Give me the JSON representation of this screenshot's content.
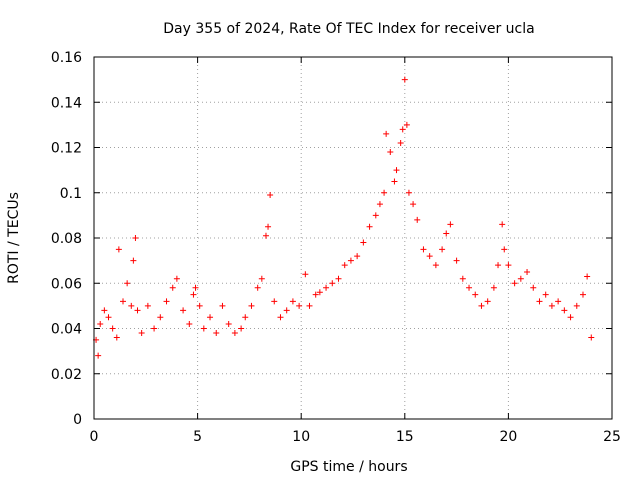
{
  "chart_data": {
    "type": "scatter",
    "title": "Day 355 of 2024, Rate Of TEC Index for receiver ucla",
    "xlabel": "GPS time / hours",
    "ylabel": "ROTI / TECUs",
    "xlim": [
      0,
      25
    ],
    "ylim": [
      0,
      0.16
    ],
    "x_ticks": [
      0,
      5,
      10,
      15,
      20,
      25
    ],
    "x_tick_labels": [
      "0",
      "5",
      "10",
      "15",
      "20",
      "25"
    ],
    "y_ticks": [
      0,
      0.02,
      0.04,
      0.06,
      0.08,
      0.1,
      0.12,
      0.14,
      0.16
    ],
    "y_tick_labels": [
      "0",
      "0.02",
      "0.04",
      "0.06",
      "0.08",
      "0.1",
      "0.12",
      "0.14",
      "0.16"
    ],
    "grid": true,
    "marker": "+",
    "color": "#ff0000",
    "series": [
      {
        "name": "ROTI",
        "x": [
          0.1,
          0.2,
          0.3,
          0.5,
          0.7,
          0.9,
          1.1,
          1.2,
          1.4,
          1.6,
          1.8,
          1.9,
          2.0,
          2.1,
          2.3,
          2.6,
          2.9,
          3.2,
          3.5,
          3.8,
          4.0,
          4.3,
          4.6,
          4.8,
          4.9,
          5.1,
          5.3,
          5.6,
          5.9,
          6.2,
          6.5,
          6.8,
          7.1,
          7.3,
          7.6,
          7.9,
          8.1,
          8.3,
          8.4,
          8.5,
          8.7,
          9.0,
          9.3,
          9.6,
          9.9,
          10.2,
          10.4,
          10.7,
          10.9,
          11.2,
          11.5,
          11.8,
          12.1,
          12.4,
          12.7,
          13.0,
          13.3,
          13.6,
          13.8,
          14.0,
          14.1,
          14.3,
          14.5,
          14.6,
          14.8,
          14.9,
          15.0,
          15.1,
          15.2,
          15.4,
          15.6,
          15.9,
          16.2,
          16.5,
          16.8,
          17.0,
          17.2,
          17.5,
          17.8,
          18.1,
          18.4,
          18.7,
          19.0,
          19.3,
          19.5,
          19.7,
          19.8,
          20.0,
          20.3,
          20.6,
          20.9,
          21.2,
          21.5,
          21.8,
          22.1,
          22.4,
          22.7,
          23.0,
          23.3,
          23.6,
          23.8,
          24.0
        ],
        "y": [
          0.035,
          0.028,
          0.042,
          0.048,
          0.045,
          0.04,
          0.036,
          0.075,
          0.052,
          0.06,
          0.05,
          0.07,
          0.08,
          0.048,
          0.038,
          0.05,
          0.04,
          0.045,
          0.052,
          0.058,
          0.062,
          0.048,
          0.042,
          0.055,
          0.058,
          0.05,
          0.04,
          0.045,
          0.038,
          0.05,
          0.042,
          0.038,
          0.04,
          0.045,
          0.05,
          0.058,
          0.062,
          0.081,
          0.085,
          0.099,
          0.052,
          0.045,
          0.048,
          0.052,
          0.05,
          0.064,
          0.05,
          0.055,
          0.056,
          0.058,
          0.06,
          0.062,
          0.068,
          0.07,
          0.072,
          0.078,
          0.085,
          0.09,
          0.095,
          0.1,
          0.126,
          0.118,
          0.105,
          0.11,
          0.122,
          0.128,
          0.15,
          0.13,
          0.1,
          0.095,
          0.088,
          0.075,
          0.072,
          0.068,
          0.075,
          0.082,
          0.086,
          0.07,
          0.062,
          0.058,
          0.055,
          0.05,
          0.052,
          0.058,
          0.068,
          0.086,
          0.075,
          0.068,
          0.06,
          0.062,
          0.065,
          0.058,
          0.052,
          0.055,
          0.05,
          0.052,
          0.048,
          0.045,
          0.05,
          0.055,
          0.063,
          0.036
        ]
      }
    ]
  }
}
